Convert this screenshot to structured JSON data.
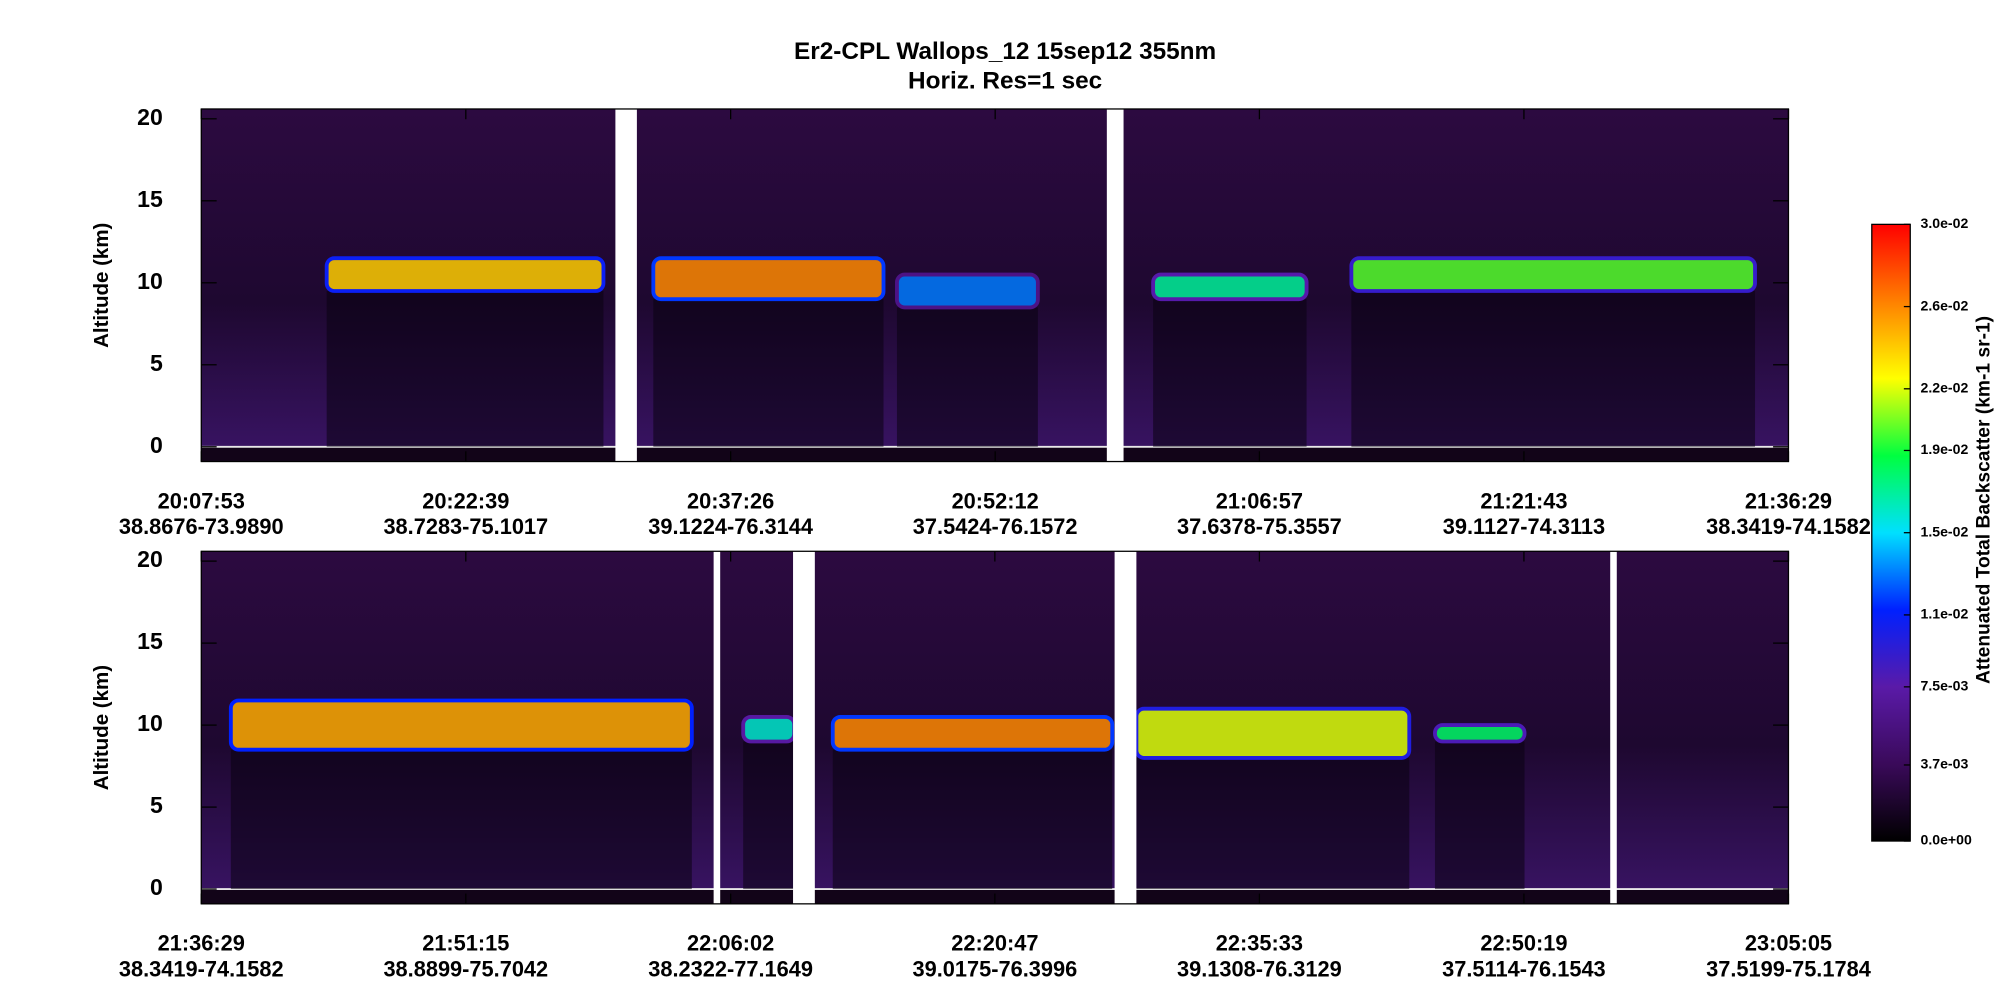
{
  "title": "Er2-CPL  Wallops_12  15sep12  355nm",
  "subtitle": "Horiz. Res=1 sec",
  "colorbar": {
    "label": "Attenuated Total Backscatter (km-1 sr-1)",
    "lim": [
      0,
      0.03
    ],
    "colormap": [
      "#000000",
      "#3a0a5a",
      "#5a1aa8",
      "#0020ff",
      "#00e0ff",
      "#00ff40",
      "#ffff00",
      "#ff8000",
      "#ff0000"
    ],
    "ticks": [
      {
        "value": 0,
        "label": "0.0e+00"
      },
      {
        "value": 0.0037,
        "label": "3.7e-03"
      },
      {
        "value": 0.0075,
        "label": "7.5e-03"
      },
      {
        "value": 0.011,
        "label": "1.1e-02"
      },
      {
        "value": 0.015,
        "label": "1.5e-02"
      },
      {
        "value": 0.019,
        "label": "1.9e-02"
      },
      {
        "value": 0.022,
        "label": "2.2e-02"
      },
      {
        "value": 0.026,
        "label": "2.6e-02"
      },
      {
        "value": 0.03,
        "label": "3.0e-02"
      }
    ]
  },
  "chart_data": [
    {
      "type": "curtain",
      "ylabel": "Altitude (km)",
      "ylim": [
        -0.9,
        20.6
      ],
      "yticks": [
        0,
        5,
        10,
        15,
        20
      ],
      "categories": [
        "20:07:53",
        "20:22:39",
        "20:37:26",
        "20:52:12",
        "21:06:57",
        "21:21:43",
        "21:36:29"
      ],
      "locations": [
        "38.8676-73.9890",
        "38.7283-75.1017",
        "39.1224-76.3144",
        "37.5424-76.1572",
        "37.6378-75.3557",
        "39.1127-74.3113",
        "38.3419-74.1582"
      ],
      "gaps": [
        {
          "start": "20:31:00",
          "end": "20:32:12"
        },
        {
          "start": "20:58:26",
          "end": "20:59:22"
        }
      ],
      "clouds": [
        {
          "start": "20:14:53",
          "end": "20:30:20",
          "base": 9.5,
          "top": 11.5,
          "peak": 0.024
        },
        {
          "start": "20:33:07",
          "end": "20:45:58",
          "base": 9,
          "top": 11.5,
          "peak": 0.026
        },
        {
          "start": "20:46:43",
          "end": "20:54:35",
          "base": 8.5,
          "top": 10.5,
          "peak": 0.013
        },
        {
          "start": "21:01:01",
          "end": "21:09:35",
          "base": 9,
          "top": 10.5,
          "peak": 0.017
        },
        {
          "start": "21:12:05",
          "end": "21:34:37",
          "base": 9.5,
          "top": 11.5,
          "peak": 0.02
        }
      ]
    },
    {
      "type": "curtain",
      "ylabel": "Altitude (km)",
      "ylim": [
        -0.9,
        20.6
      ],
      "yticks": [
        0,
        5,
        10,
        15,
        20
      ],
      "categories": [
        "21:36:29",
        "21:51:15",
        "22:06:02",
        "22:20:47",
        "22:35:33",
        "22:50:19",
        "23:05:05"
      ],
      "locations": [
        "38.3419-74.1582",
        "38.8899-75.7042",
        "38.2322-77.1649",
        "39.0175-76.3996",
        "39.1308-76.3129",
        "37.5114-76.1543",
        "37.5199-75.1784"
      ],
      "gaps": [
        {
          "start": "22:05:05",
          "end": "22:05:27"
        },
        {
          "start": "22:09:31",
          "end": "22:10:44"
        },
        {
          "start": "22:27:28",
          "end": "22:28:41"
        },
        {
          "start": "22:55:08",
          "end": "22:55:30"
        }
      ],
      "clouds": [
        {
          "start": "21:38:08",
          "end": "22:03:52",
          "base": 8.5,
          "top": 11.5,
          "peak": 0.025
        },
        {
          "start": "22:06:44",
          "end": "22:09:35",
          "base": 9,
          "top": 10.5,
          "peak": 0.016
        },
        {
          "start": "22:11:44",
          "end": "22:27:20",
          "base": 8.5,
          "top": 10.5,
          "peak": 0.026
        },
        {
          "start": "22:28:41",
          "end": "22:43:55",
          "base": 8,
          "top": 11,
          "peak": 0.022
        },
        {
          "start": "22:45:21",
          "end": "22:50:21",
          "base": 9,
          "top": 10,
          "peak": 0.018
        }
      ]
    }
  ]
}
